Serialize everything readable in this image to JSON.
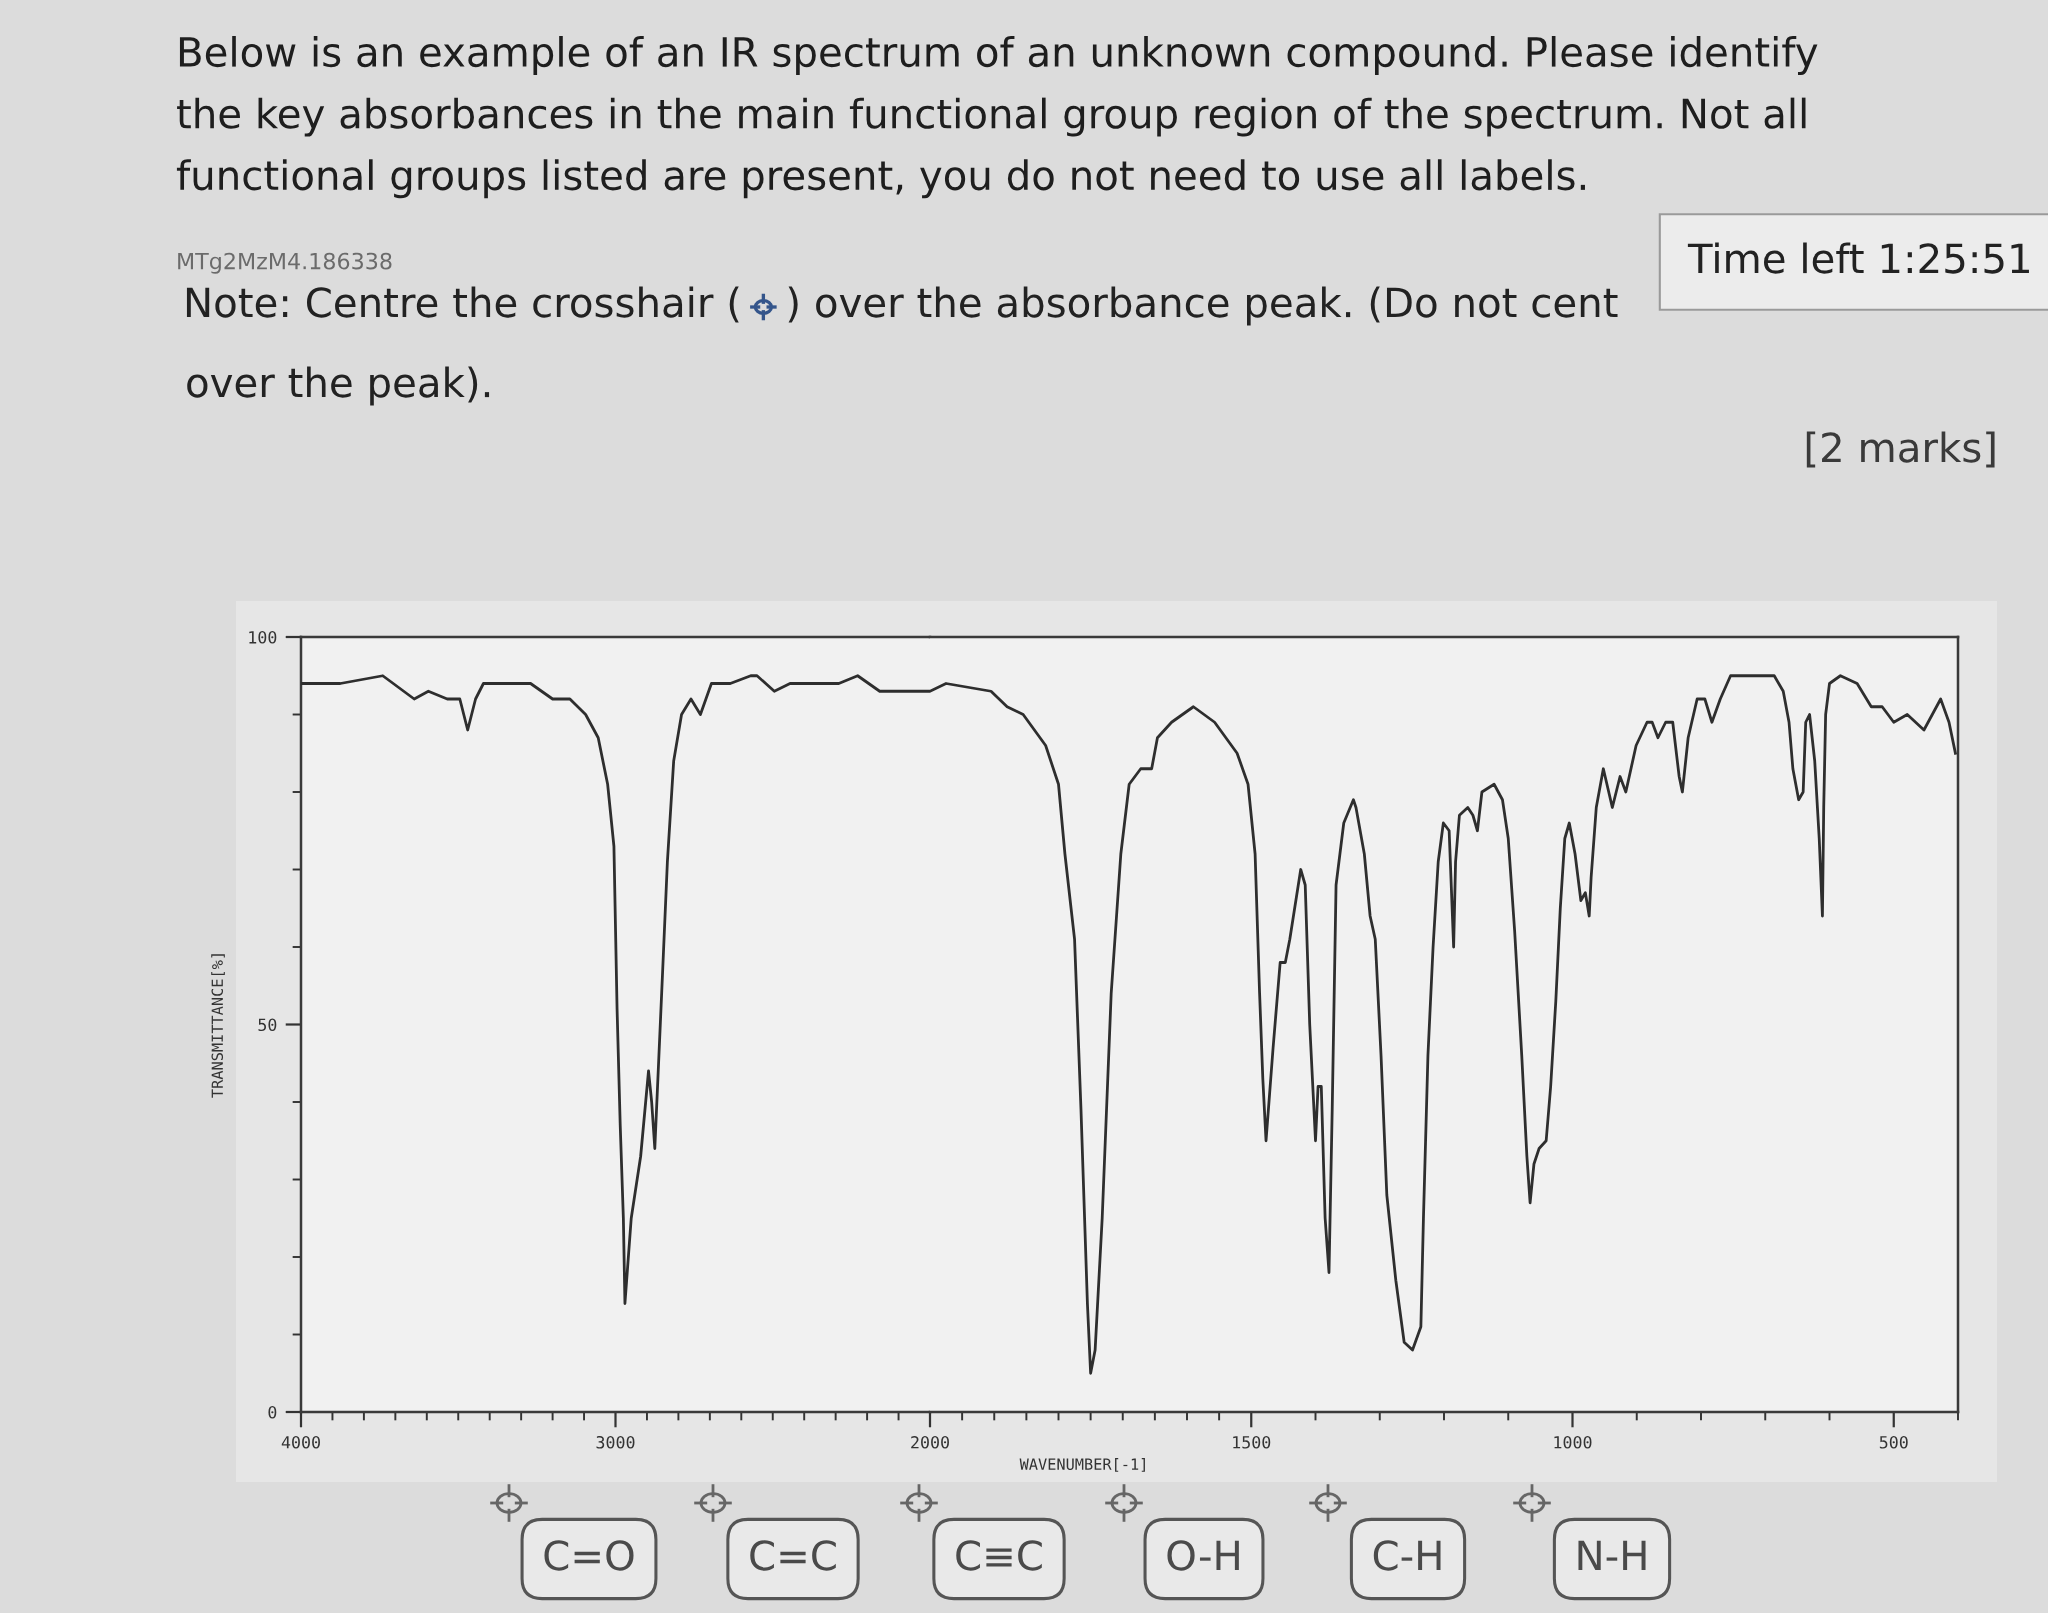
{
  "chart_data": [
    {
      "type": "line",
      "title": "Below is an example of an IR spectrum of an unknown compound. Please identify\nthe key absorbances in the main functional group region of the spectrum. Not all\nfunctional groups listed are present, you do not need to use all labels.",
      "annotations": [
        "MTg2MzM4.186338",
        "Note: Centre the crosshair (",
        ") over the absorbance peak. (Do not cent",
        "Time left 1:25:51",
        "over the peak).",
        "[2 marks]",
        "C=O",
        "C=C",
        "C≡C",
        "O-H",
        "C-H",
        "N-H"
      ],
      "ylabel": "TRANSMITTANCE[%]",
      "color": "#2e2e2e",
      "x": [
        4000,
        3875,
        3740,
        3640,
        3595,
        3535,
        3495,
        3470,
        3445,
        3420,
        3320,
        3270,
        3200,
        3145,
        3095,
        3055,
        3025,
        3005,
        2995,
        2985,
        2975,
        2970,
        2950,
        2920,
        2895,
        2885,
        2875,
        2850,
        2835,
        2815,
        2790,
        2760,
        2730,
        2695,
        2635,
        2570,
        2550,
        2495,
        2445,
        2290,
        2230,
        2160,
        2085,
        2000
      ],
      "values": [
        94,
        94,
        95,
        92,
        93,
        92,
        92,
        88,
        92,
        94,
        94,
        94,
        92,
        92,
        90,
        87,
        81,
        73,
        52,
        37,
        25,
        14,
        25,
        33,
        44,
        40,
        34,
        57,
        71,
        84,
        90,
        92,
        90,
        94,
        94,
        95,
        95,
        93,
        94,
        94,
        95,
        93,
        93,
        93
      ],
      "xlim": [
        4000,
        2000
      ],
      "xticks": [
        4000,
        {
          "value": 3900,
          "label": null
        },
        {
          "value": 3800,
          "label": null
        },
        {
          "value": 3700,
          "label": null
        },
        {
          "value": 3600,
          "label": null
        },
        {
          "value": 3500,
          "label": null
        },
        {
          "value": 3400,
          "label": null
        },
        {
          "value": 3300,
          "label": null
        },
        {
          "value": 3200,
          "label": null
        },
        {
          "value": 3100,
          "label": null
        },
        3000,
        {
          "value": 2900,
          "label": null
        },
        {
          "value": 2800,
          "label": null
        },
        {
          "value": 2700,
          "label": null
        },
        {
          "value": 2600,
          "label": null
        },
        {
          "value": 2500,
          "label": null
        },
        {
          "value": 2400,
          "label": null
        },
        {
          "value": 2300,
          "label": null
        },
        {
          "value": 2200,
          "label": null
        },
        {
          "value": 2100,
          "label": null
        },
        2000
      ],
      "ylim": [
        0,
        100
      ],
      "yticks": [
        0,
        {
          "value": 10,
          "label": null
        },
        {
          "value": 20,
          "label": null
        },
        {
          "value": 30,
          "label": null
        },
        {
          "value": 40,
          "label": null
        },
        50,
        {
          "value": 60,
          "label": null
        },
        {
          "value": 70,
          "label": null
        },
        {
          "value": 80,
          "label": null
        },
        {
          "value": 90,
          "label": null
        },
        100
      ]
    },
    {
      "type": "line",
      "xlabel": "WAVENUMBER[-1]",
      "color": "#2e2e2e",
      "x": [
        2000,
        1975,
        1905,
        1880,
        1855,
        1820,
        1800,
        1790,
        1775,
        1765,
        1755,
        1750,
        1743,
        1732,
        1718,
        1703,
        1690,
        1672,
        1655,
        1646,
        1624,
        1590,
        1557,
        1522,
        1505,
        1494,
        1487,
        1482,
        1477,
        1466,
        1455,
        1447,
        1440,
        1423,
        1416,
        1409,
        1400,
        1396,
        1391,
        1385,
        1379,
        1374,
        1368,
        1356,
        1341,
        1337,
        1324,
        1315,
        1307,
        1298,
        1289,
        1275,
        1262,
        1249,
        1236,
        1232,
        1225,
        1217,
        1209,
        1201,
        1192,
        1185,
        1182,
        1176,
        1163,
        1155,
        1148,
        1141,
        1122,
        1109,
        1100,
        1090,
        1079,
        1071,
        1066,
        1060,
        1052,
        1041,
        1034,
        1026,
        1019,
        1012,
        1005,
        996,
        987,
        980,
        974,
        971,
        963,
        952,
        938,
        926,
        917,
        901,
        884,
        876,
        867,
        855,
        844,
        834,
        829,
        820,
        806,
        794,
        783,
        770,
        754,
        733,
        686,
        672,
        663,
        657,
        648,
        641,
        637,
        631,
        623,
        616,
        611,
        609,
        606,
        600,
        583,
        557,
        535,
        518,
        500,
        479,
        453,
        427,
        414,
        404
      ],
      "values": [
        93,
        94,
        93,
        91,
        90,
        86,
        81,
        72,
        61,
        39,
        14,
        5,
        8,
        25,
        54,
        72,
        81,
        83,
        83,
        87,
        89,
        91,
        89,
        85,
        81,
        72,
        54,
        43,
        35,
        47,
        58,
        58,
        61,
        70,
        68,
        50,
        35,
        42,
        42,
        25,
        18,
        39,
        68,
        76,
        79,
        78,
        72,
        64,
        61,
        46,
        28,
        17,
        9,
        8,
        11,
        25,
        46,
        60,
        71,
        76,
        75,
        60,
        71,
        77,
        78,
        77,
        75,
        80,
        81,
        79,
        74,
        62,
        46,
        33,
        27,
        32,
        34,
        35,
        42,
        53,
        65,
        74,
        76,
        72,
        66,
        67,
        64,
        69,
        78,
        83,
        78,
        82,
        80,
        86,
        89,
        89,
        87,
        89,
        89,
        82,
        80,
        87,
        92,
        92,
        89,
        92,
        95,
        95,
        95,
        93,
        89,
        83,
        79,
        80,
        89,
        90,
        84,
        74,
        64,
        78,
        90,
        94,
        95,
        94,
        91,
        91,
        89,
        90,
        88,
        92,
        89,
        85
      ],
      "xlim": [
        2000,
        400
      ],
      "xticks": [
        {
          "value": 1950,
          "label": null
        },
        {
          "value": 1900,
          "label": null
        },
        {
          "value": 1850,
          "label": null
        },
        {
          "value": 1800,
          "label": null
        },
        {
          "value": 1750,
          "label": null
        },
        {
          "value": 1700,
          "label": null
        },
        {
          "value": 1650,
          "label": null
        },
        {
          "value": 1600,
          "label": null
        },
        {
          "value": 1550,
          "label": null
        },
        1500,
        {
          "value": 1400,
          "label": null
        },
        {
          "value": 1300,
          "label": null
        },
        {
          "value": 1200,
          "label": null
        },
        {
          "value": 1100,
          "label": null
        },
        1000,
        {
          "value": 900,
          "label": null
        },
        {
          "value": 800,
          "label": null
        },
        {
          "value": 700,
          "label": null
        },
        {
          "value": 600,
          "label": null
        },
        500,
        {
          "value": 400,
          "label": null
        }
      ],
      "ylim": [
        0,
        100
      ],
      "tick_labels": "x"
    }
  ]
}
